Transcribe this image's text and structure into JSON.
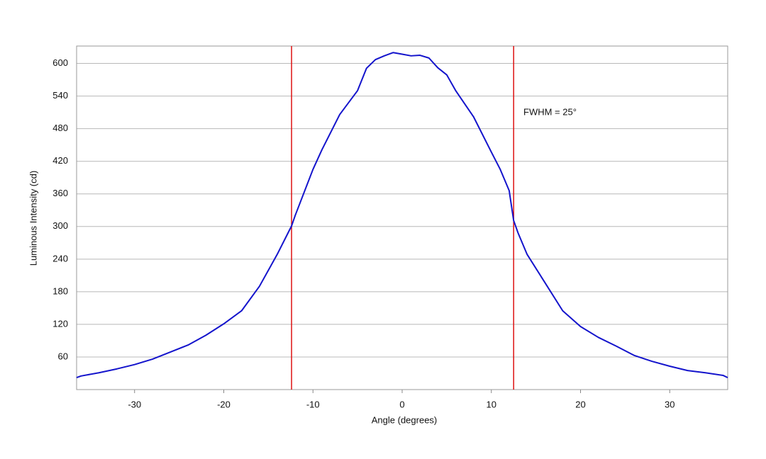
{
  "chart_data": {
    "type": "line",
    "xlabel": "Angle (degrees)",
    "ylabel": "Luminous Intensity (cd)",
    "annotation": "FWHM = 25°",
    "x": [
      -36.5,
      -36,
      -34,
      -32,
      -30,
      -28,
      -26,
      -24,
      -22,
      -20,
      -18,
      -16,
      -14,
      -12.4,
      -12,
      -10,
      -9,
      -7,
      -5,
      -4,
      -3,
      -2,
      -1,
      0,
      1,
      2,
      3,
      4,
      5,
      6,
      8,
      10,
      11,
      12,
      12.5,
      13,
      14,
      16,
      18,
      20,
      22,
      24,
      26,
      28,
      30,
      32,
      34,
      36,
      36.5
    ],
    "series": [
      {
        "name": "Luminous Intensity",
        "color": "#1414cc",
        "values": [
          22,
          25,
          31,
          38,
          46,
          56,
          69,
          82,
          100,
          121,
          145,
          190,
          249,
          301,
          320,
          405,
          441,
          506,
          550,
          591,
          607,
          614,
          620,
          617,
          614,
          615,
          610,
          592,
          579,
          550,
          502,
          437,
          405,
          366,
          311,
          288,
          249,
          197,
          145,
          116,
          96,
          80,
          63,
          52,
          43,
          35,
          31,
          26,
          22
        ]
      }
    ],
    "vlines": [
      -12.4,
      12.5
    ],
    "vline_color": "#dd1111",
    "xlim": [
      -36.5,
      36.5
    ],
    "ylim": [
      0,
      632
    ],
    "xticks": [
      -30,
      -20,
      -10,
      0,
      10,
      20,
      30
    ],
    "yticks": [
      60,
      120,
      180,
      240,
      300,
      360,
      420,
      480,
      540,
      600
    ],
    "grid": true
  }
}
